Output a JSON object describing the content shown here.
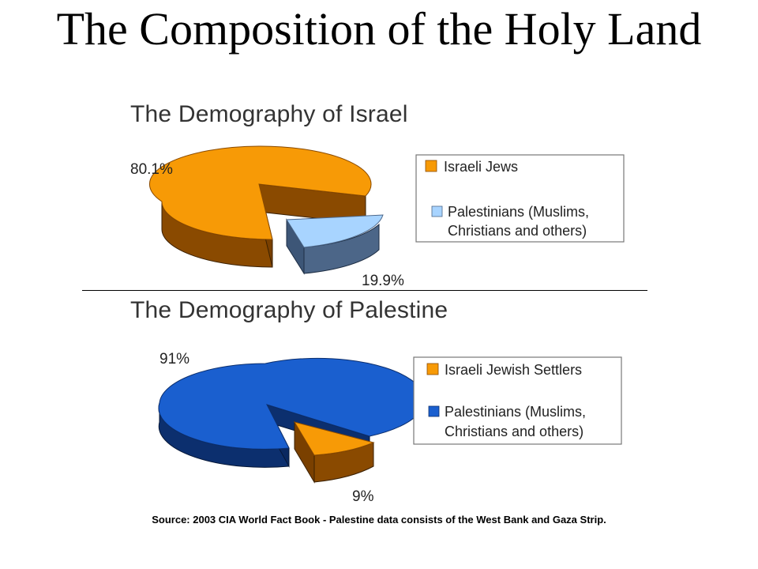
{
  "slide_title": "The Composition of the Holy Land",
  "source_note": "Source: 2003 CIA World Fact Book - Palestine data consists of the West Bank and Gaza Strip.",
  "chart_data": [
    {
      "type": "pie",
      "title": "The Demography of Israel",
      "slices": [
        {
          "label": "Israeli Jews",
          "value": 80.1,
          "value_label": "80.1%",
          "color": "#f79a06",
          "side_color": "#8a4a00"
        },
        {
          "label": "Palestinians (Muslims, Christians and others)",
          "value": 19.9,
          "value_label": "19.9%",
          "color": "#a8d4ff",
          "side_color": "#4c6688"
        }
      ],
      "legend": {
        "placement": "right",
        "entries": [
          "Israeli Jews",
          "Palestinians (Muslims,",
          "Christians and others)"
        ]
      }
    },
    {
      "type": "pie",
      "title": "The Demography of Palestine",
      "slices": [
        {
          "label": "Israeli Jewish Settlers",
          "value": 9,
          "value_label": "9%",
          "color": "#f79a06",
          "side_color": "#8a4a00"
        },
        {
          "label": "Palestinians (Muslims, Christians and others)",
          "value": 91,
          "value_label": "91%",
          "color": "#1a5fcf",
          "side_color": "#0c2f6e"
        }
      ],
      "legend": {
        "placement": "right",
        "entries": [
          "Israeli Jewish Settlers",
          "Palestinians (Muslims,",
          "Christians and others)"
        ]
      }
    }
  ]
}
